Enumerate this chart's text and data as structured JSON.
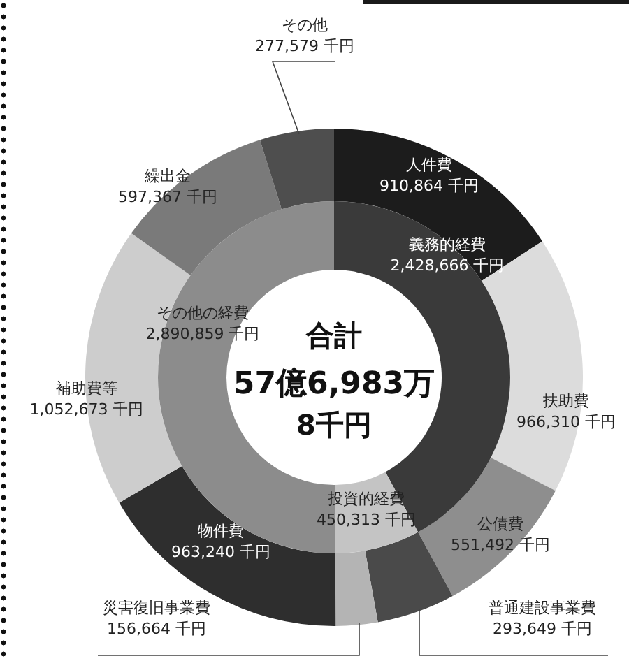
{
  "chart_data": [
    {
      "type": "donut",
      "categories": [
        "人件費",
        "扶助費",
        "公債費",
        "普通建設事業費",
        "災害復旧事業費",
        "物件費",
        "補助費等",
        "繰出金",
        "その他"
      ],
      "values": [
        910864,
        966310,
        551492,
        293649,
        156664,
        963240,
        1052673,
        597367,
        277579
      ],
      "colors": [
        "#1c1c1c",
        "#dcdcdc",
        "#8e8e8e",
        "#4a4a4a",
        "#b4b4b4",
        "#2e2e2e",
        "#cdcdcd",
        "#7a7a7a",
        "#4e4e4e"
      ],
      "value_labels": [
        "910,864 千円",
        "966,310 千円",
        "551,492 千円",
        "293,649 千円",
        "156,664 千円",
        "963,240 千円",
        "1,052,673 千円",
        "597,367 千円",
        "277,579 千円"
      ]
    },
    {
      "type": "donut",
      "categories": [
        "義務的経費",
        "投資的経費",
        "その他の経費"
      ],
      "values": [
        2428666,
        450313,
        2890859
      ],
      "colors": [
        "#3a3a3a",
        "#c4c4c4",
        "#8c8c8c"
      ],
      "value_labels": [
        "2,428,666 千円",
        "450,313 千円",
        "2,890,859 千円"
      ],
      "annotations": [
        "合計",
        "57億6,983万",
        "8千円"
      ]
    }
  ]
}
